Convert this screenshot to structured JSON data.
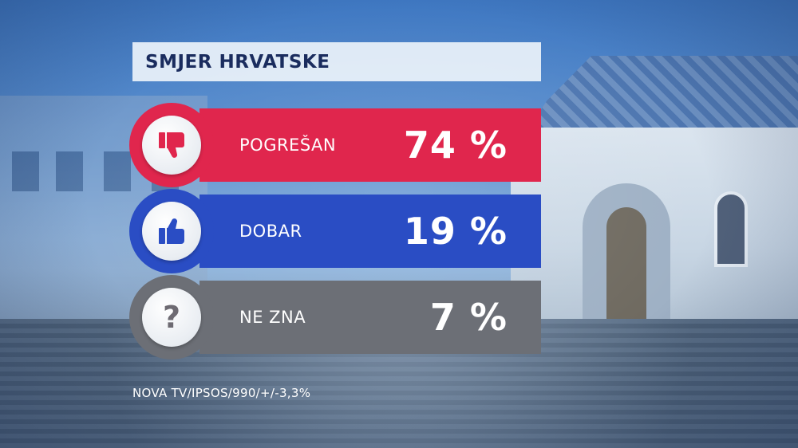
{
  "title": "SMJER HRVATSKE",
  "source": "NOVA TV/IPSOS/990/+/-3,3%",
  "colors": {
    "negative": "#e0264d",
    "positive": "#2a4dc4",
    "unknown": "#6c6f76",
    "title_text": "#1a2c5e"
  },
  "chart_data": {
    "type": "bar",
    "title": "SMJER HRVATSKE",
    "categories": [
      "POGREŠAN",
      "DOBAR",
      "NE ZNA"
    ],
    "values": [
      74,
      19,
      7
    ],
    "value_labels": [
      "74 %",
      "19 %",
      "7 %"
    ],
    "icons": [
      "thumbs-down-icon",
      "thumbs-up-icon",
      "question-mark-icon"
    ],
    "unit": "%"
  },
  "rows": [
    {
      "label": "POGREŠAN",
      "value": "74 %",
      "icon": "thumbs-down-icon"
    },
    {
      "label": "DOBAR",
      "value": "19 %",
      "icon": "thumbs-up-icon"
    },
    {
      "label": "NE ZNA",
      "value": "7 %",
      "icon": "question-mark-icon"
    }
  ],
  "question_glyph": "?"
}
